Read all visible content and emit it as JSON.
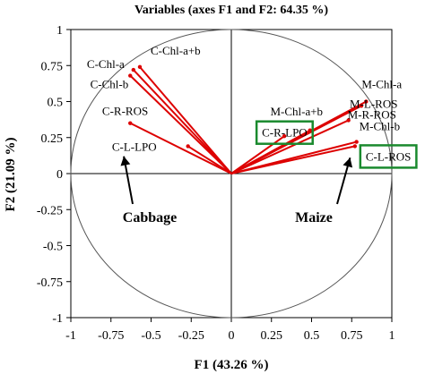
{
  "chart_data": {
    "type": "scatter",
    "title": "Variables (axes F1 and F2: 64.35 %)",
    "xlabel": "F1 (43.26 %)",
    "ylabel": "F2 (21.09 %)",
    "xlim": [
      -1,
      1
    ],
    "ylim": [
      -1,
      1
    ],
    "xticks": [
      "-1",
      "-0.75",
      "-0.5",
      "-0.25",
      "0",
      "0.25",
      "0.5",
      "0.75",
      "1"
    ],
    "yticks": [
      "-1",
      "-0.75",
      "-0.5",
      "-0.25",
      "0",
      "0.25",
      "0.5",
      "0.75",
      "1"
    ],
    "correlation_circle": true,
    "vector_color": "#dd0000",
    "box_color": "#1a8a2e",
    "variables": [
      {
        "name": "C-Chl-a+b",
        "x": -0.57,
        "y": 0.74
      },
      {
        "name": "C-Chl-a",
        "x": -0.61,
        "y": 0.72
      },
      {
        "name": "C-Chl-b",
        "x": -0.63,
        "y": 0.68
      },
      {
        "name": "C-R-ROS",
        "x": -0.63,
        "y": 0.35
      },
      {
        "name": "C-L-LPO",
        "x": -0.27,
        "y": 0.19
      },
      {
        "name": "M-Chl-a+b",
        "x": 0.33,
        "y": 0.26
      },
      {
        "name": "C-R-LPO",
        "x": 0.49,
        "y": 0.3
      },
      {
        "name": "M-Chl-a",
        "x": 0.84,
        "y": 0.5
      },
      {
        "name": "M-L-ROS",
        "x": 0.81,
        "y": 0.47
      },
      {
        "name": "M-R-ROS",
        "x": 0.73,
        "y": 0.37
      },
      {
        "name": "M-Chl-b",
        "x": 0.78,
        "y": 0.22
      },
      {
        "name": "C-L-ROS",
        "x": 0.77,
        "y": 0.19
      }
    ],
    "boxed_labels": [
      "C-R-LPO",
      "C-L-ROS"
    ],
    "annotations": [
      {
        "text": "Cabbage",
        "target_x": -0.67,
        "target_y": 0.12
      },
      {
        "text": "Maize",
        "target_x": 0.74,
        "target_y": 0.11
      }
    ]
  }
}
